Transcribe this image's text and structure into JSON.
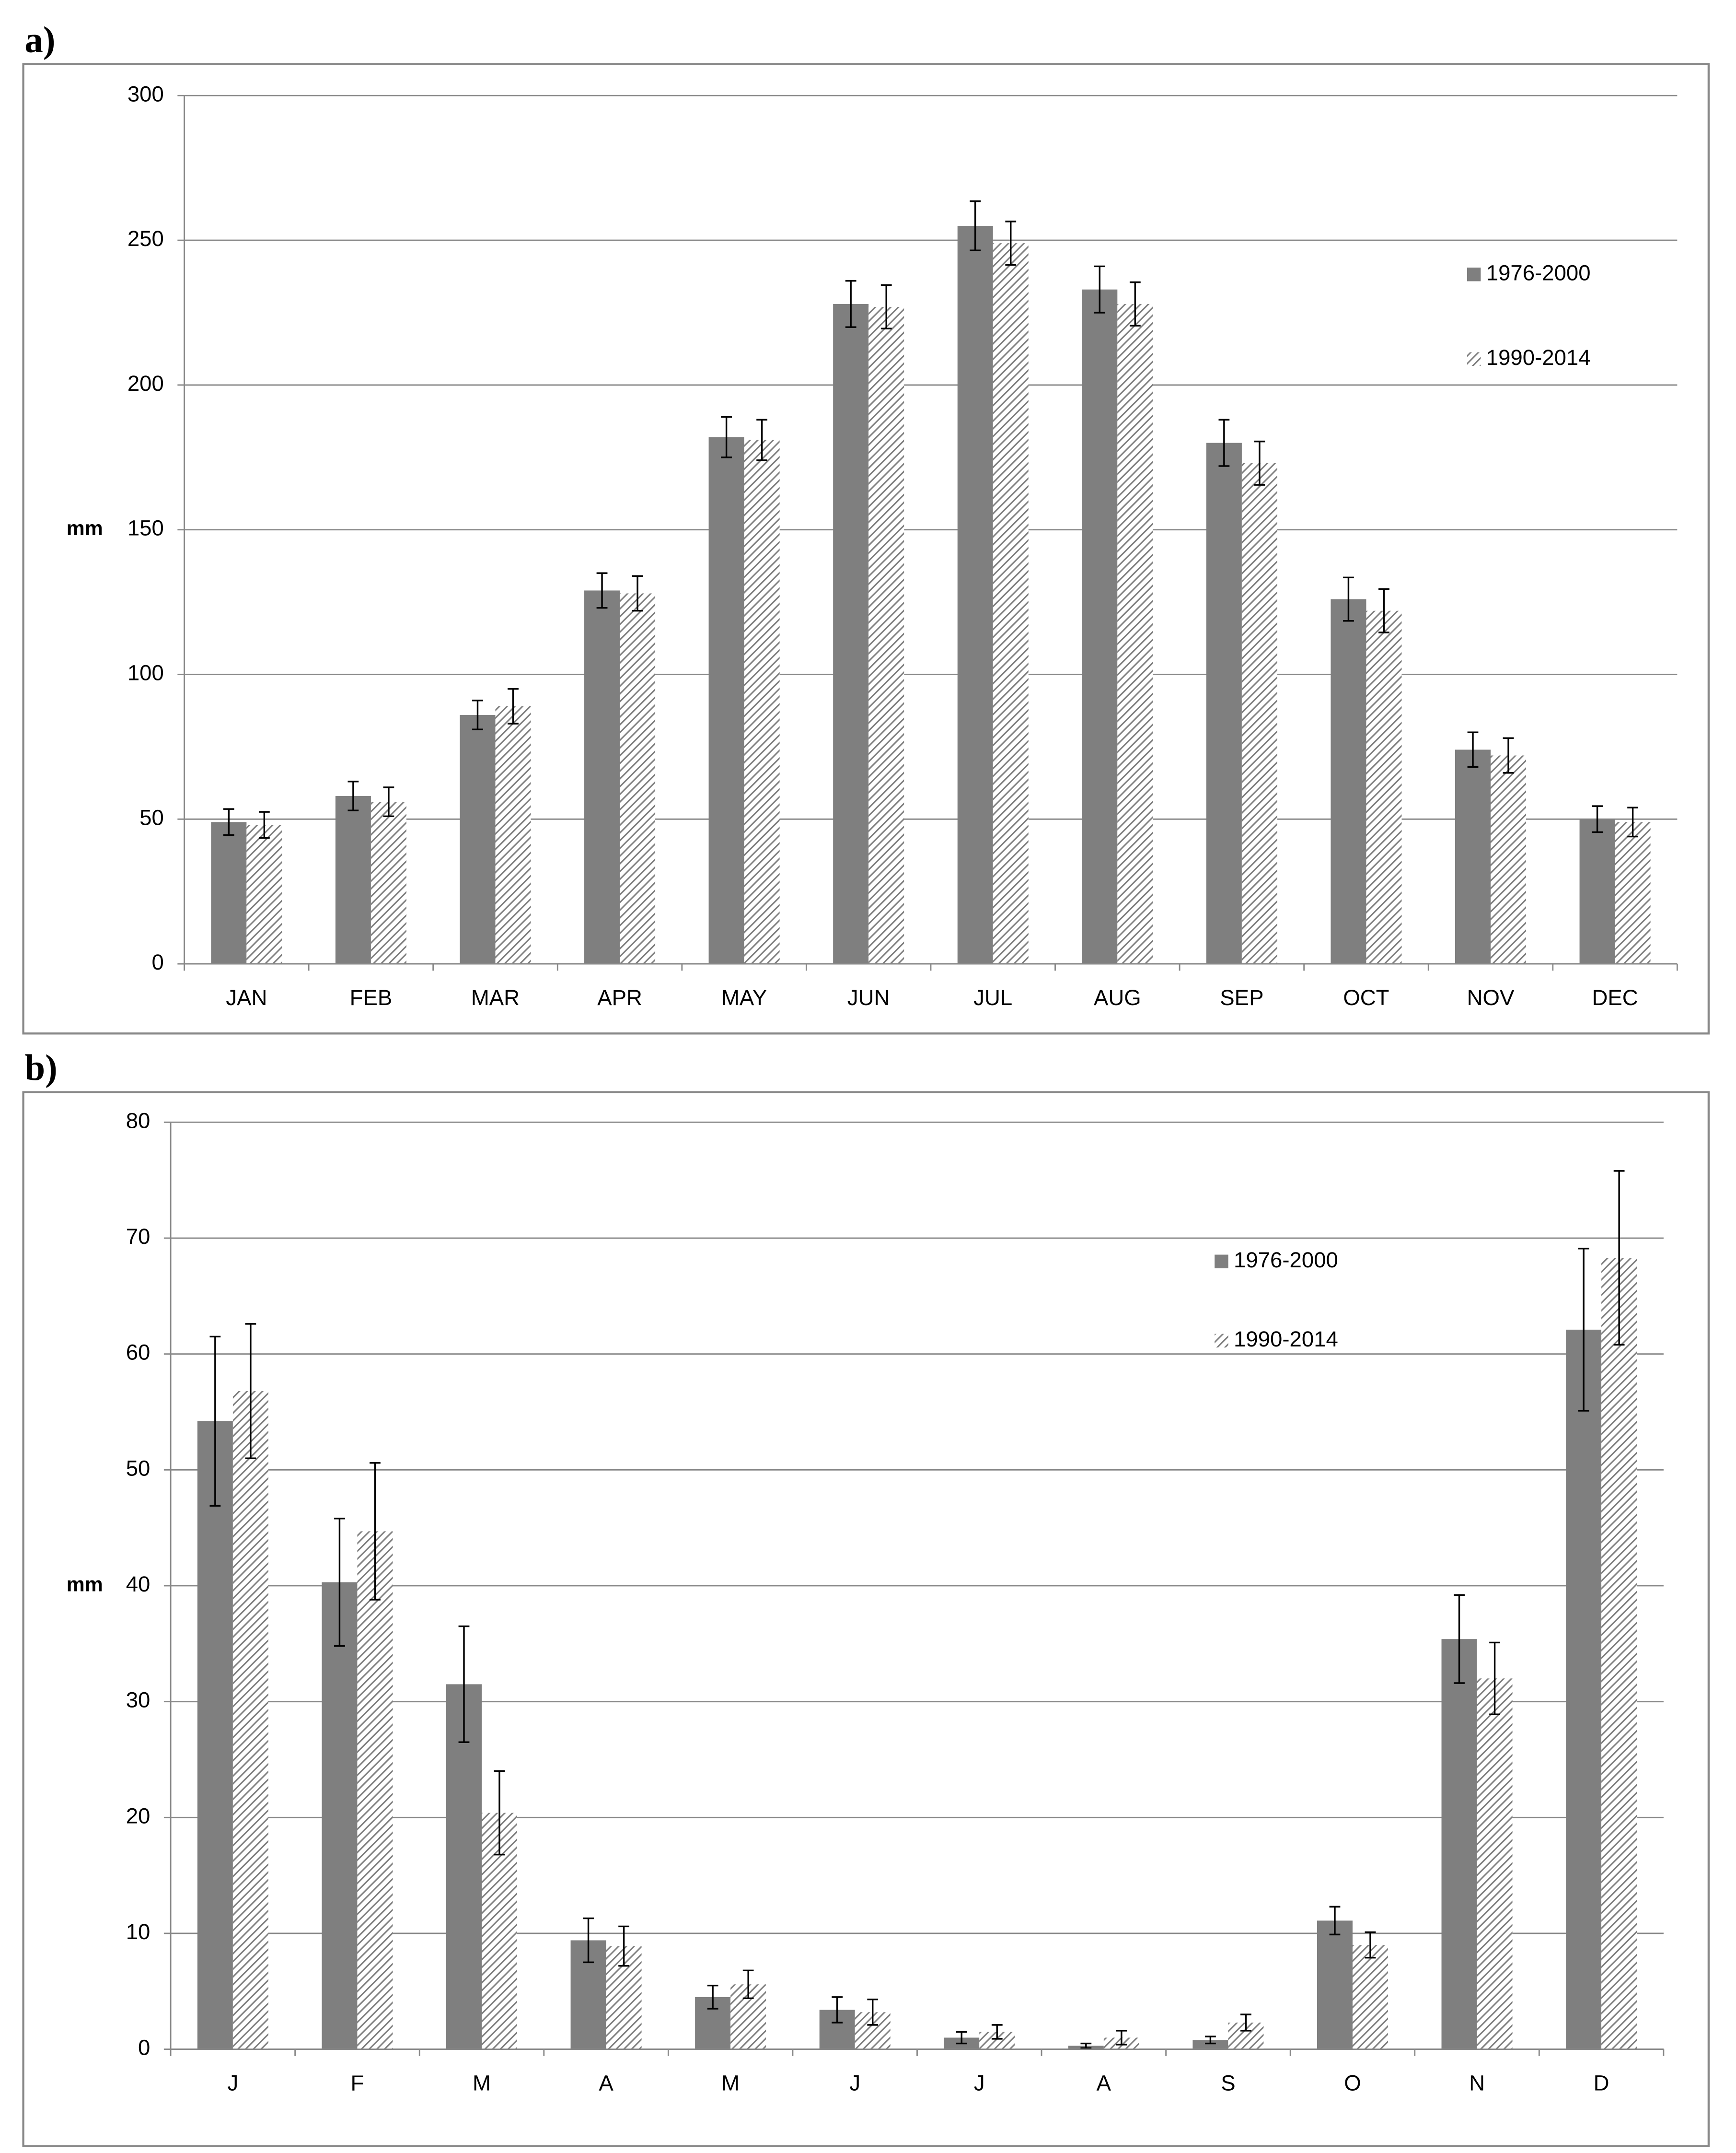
{
  "chart_data": [
    {
      "type": "bar",
      "panel_label": "a)",
      "y_label": "mm",
      "categories": [
        "JAN",
        "FEB",
        "MAR",
        "APR",
        "MAY",
        "JUN",
        "JUL",
        "AUG",
        "SEP",
        "OCT",
        "NOV",
        "DEC"
      ],
      "series": [
        {
          "name": "1976-2000",
          "color": "#7f7f7f",
          "hatch": false,
          "values": [
            49,
            58,
            86,
            129,
            182,
            228,
            255,
            233,
            180,
            126,
            74,
            50
          ],
          "errors": [
            4.5,
            5,
            5,
            6,
            7,
            8,
            8.5,
            8,
            8,
            7.5,
            6,
            4.5
          ]
        },
        {
          "name": "1990-2014",
          "color": "#7f7f7f",
          "hatch": true,
          "values": [
            48,
            56,
            89,
            128,
            181,
            227,
            249,
            228,
            173,
            122,
            72,
            49
          ],
          "errors": [
            4.5,
            5,
            6,
            6,
            7,
            7.5,
            7.5,
            7.5,
            7.5,
            7.5,
            6,
            5
          ]
        }
      ],
      "ylim": [
        0,
        300
      ],
      "yticks": [
        0,
        50,
        100,
        150,
        200,
        250,
        300
      ],
      "grid": true,
      "legend": "upper right"
    },
    {
      "type": "bar",
      "panel_label": "b)",
      "y_label": "mm",
      "categories": [
        "J",
        "F",
        "M",
        "A",
        "M",
        "J",
        "J",
        "A",
        "S",
        "O",
        "N",
        "D"
      ],
      "series": [
        {
          "name": "1976-2000",
          "color": "#7f7f7f",
          "hatch": false,
          "values": [
            54.2,
            40.3,
            31.5,
            9.4,
            4.5,
            3.4,
            1.0,
            0.3,
            0.8,
            11.1,
            35.4,
            62.1
          ],
          "errors": [
            7.3,
            5.5,
            5,
            1.9,
            1,
            1.1,
            0.5,
            0.2,
            0.3,
            1.2,
            3.8,
            7
          ]
        },
        {
          "name": "1990-2014",
          "color": "#7f7f7f",
          "hatch": true,
          "values": [
            56.8,
            44.7,
            20.4,
            8.9,
            5.6,
            3.2,
            1.5,
            1.0,
            2.3,
            9.0,
            32.0,
            68.3
          ],
          "errors": [
            5.8,
            5.9,
            3.6,
            1.7,
            1.2,
            1.1,
            0.6,
            0.6,
            0.7,
            1.1,
            3.1,
            7.5
          ]
        }
      ],
      "ylim": [
        0,
        80
      ],
      "yticks": [
        0,
        10,
        20,
        30,
        40,
        50,
        60,
        70,
        80
      ],
      "grid": true,
      "legend": "upper right"
    }
  ]
}
